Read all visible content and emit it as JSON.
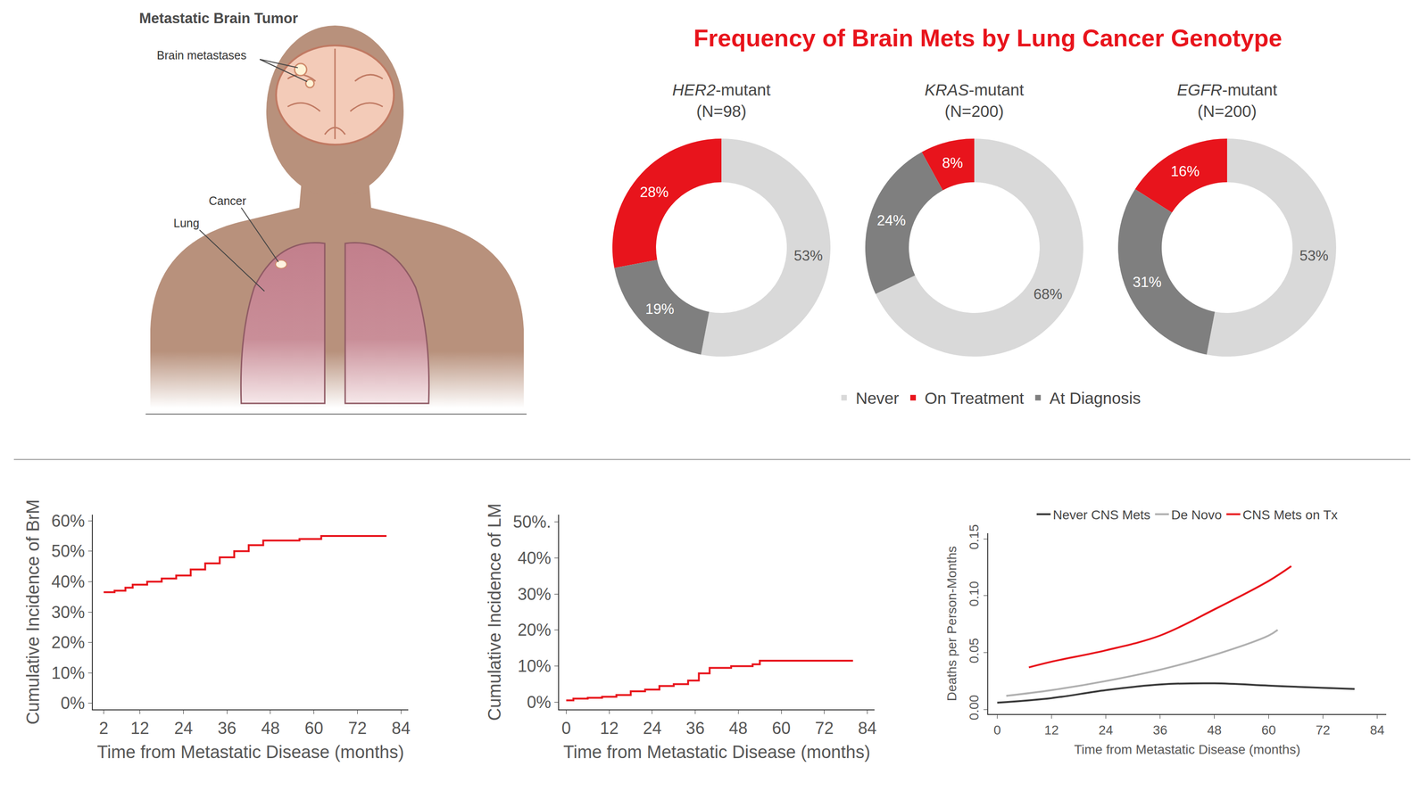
{
  "illustration": {
    "title": "Metastatic Brain Tumor",
    "labels": {
      "brain_metastases": "Brain metastases",
      "cancer": "Cancer",
      "lung": "Lung"
    }
  },
  "chart_data": [
    {
      "type": "pie",
      "title": "Frequency of Brain Mets by Lung Cancer Genotype",
      "categories": [
        "Never",
        "On Treatment",
        "At Diagnosis"
      ],
      "colors": [
        "#d9d9d9",
        "#e8141c",
        "#7f7f7f"
      ],
      "legend": "bottom",
      "data_labels": true,
      "series": [
        {
          "name": "HER2-mutant",
          "subtitle": "(N=98)",
          "values": [
            53,
            28,
            19
          ],
          "value_labels": [
            "53%",
            "28%",
            "19%"
          ]
        },
        {
          "name": "KRAS-mutant",
          "subtitle": "(N=200)",
          "values": [
            68,
            8,
            24
          ],
          "value_labels": [
            "68%",
            "8%",
            "24%"
          ]
        },
        {
          "name": "EGFR-mutant",
          "subtitle": "(N=200)",
          "values": [
            53,
            16,
            31
          ],
          "value_labels": [
            "53%",
            "16%",
            "31%"
          ]
        }
      ]
    },
    {
      "type": "line",
      "y_label": "Cumulative Incidence of BrM",
      "x_label": "Time from Metastatic Disease (months)",
      "x": [
        2,
        5,
        8,
        10,
        14,
        18,
        22,
        26,
        30,
        34,
        38,
        42,
        46,
        50,
        56,
        62,
        80
      ],
      "values": [
        36.5,
        37,
        38,
        39,
        40,
        41,
        42,
        44,
        46,
        48,
        50,
        52,
        53.5,
        53.5,
        54,
        55,
        55
      ],
      "color": "#e8141c",
      "line_style": "step",
      "grid": false,
      "xlim": [
        -1,
        86
      ],
      "xticks": [
        2,
        12,
        24,
        36,
        48,
        60,
        72,
        84
      ],
      "ylim": [
        -2,
        62
      ],
      "yticks": [
        {
          "value": 0,
          "label": "0%"
        },
        {
          "value": 10,
          "label": "10%"
        },
        {
          "value": 20,
          "label": "20%"
        },
        {
          "value": 30,
          "label": "30%"
        },
        {
          "value": 40,
          "label": "40%"
        },
        {
          "value": 50,
          "label": "50%"
        },
        {
          "value": 60,
          "label": "60%"
        }
      ]
    },
    {
      "type": "line",
      "y_label": "Cumulative Incidence of LM",
      "x_label": "Time from Metastatic Disease (months)",
      "x": [
        0,
        2,
        6,
        10,
        14,
        18,
        22,
        26,
        30,
        34,
        37,
        40,
        46,
        52,
        54,
        80
      ],
      "values": [
        0.5,
        1,
        1.2,
        1.5,
        2,
        3,
        3.5,
        4.5,
        5,
        6,
        8,
        9.5,
        10,
        10.5,
        11.5,
        11.5
      ],
      "color": "#e8141c",
      "line_style": "step",
      "grid": false,
      "xlim": [
        -2,
        86
      ],
      "xticks": [
        0,
        12,
        24,
        36,
        48,
        60,
        72,
        84
      ],
      "ylim": [
        -2,
        52
      ],
      "yticks": [
        {
          "value": 0,
          "label": "0%"
        },
        {
          "value": 10,
          "label": "10%"
        },
        {
          "value": 20,
          "label": "20%"
        },
        {
          "value": 30,
          "label": "30%"
        },
        {
          "value": 40,
          "label": "40%"
        },
        {
          "value": 50,
          "label": "50%."
        }
      ]
    },
    {
      "type": "line",
      "y_label": "Deaths per Person-Months",
      "x_label": "Time from Metastatic Disease (months)",
      "line_style": "smooth",
      "legend": "top",
      "grid": false,
      "series": [
        {
          "name": "Never CNS Mets",
          "color": "#3a3a3a",
          "x": [
            0,
            12,
            24,
            36,
            48,
            60,
            72,
            79
          ],
          "values": [
            0.006,
            0.01,
            0.017,
            0.022,
            0.023,
            0.021,
            0.019,
            0.018
          ]
        },
        {
          "name": "De Novo",
          "color": "#b0b0b0",
          "x": [
            2,
            12,
            24,
            36,
            48,
            60,
            62
          ],
          "values": [
            0.012,
            0.017,
            0.025,
            0.035,
            0.048,
            0.065,
            0.07
          ]
        },
        {
          "name": "CNS Mets on Tx",
          "color": "#e8141c",
          "x": [
            7,
            12,
            24,
            36,
            48,
            60,
            65
          ],
          "values": [
            0.037,
            0.042,
            0.052,
            0.065,
            0.088,
            0.113,
            0.126
          ]
        }
      ],
      "xlim": [
        -2,
        86
      ],
      "xticks": [
        0,
        12,
        24,
        36,
        48,
        60,
        72,
        84
      ],
      "ylim": [
        -0.004,
        0.155
      ],
      "yticks": [
        {
          "value": 0,
          "label": "0.00"
        },
        {
          "value": 0.05,
          "label": "0.05"
        },
        {
          "value": 0.1,
          "label": "0.10"
        },
        {
          "value": 0.15,
          "label": "0.15"
        }
      ]
    }
  ]
}
